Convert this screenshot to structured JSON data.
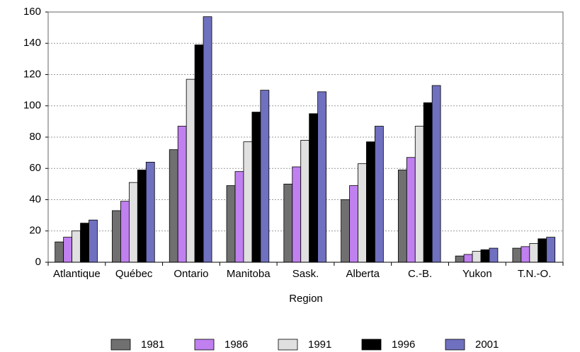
{
  "chart_data": {
    "type": "bar",
    "x_label": "Region",
    "categories": [
      "Atlantique",
      "Québec",
      "Ontario",
      "Manitoba",
      "Sask.",
      "Alberta",
      "C.-B.",
      "Yukon",
      "T.N.-O."
    ],
    "series": [
      {
        "name": "1981",
        "color": "#707070",
        "values": [
          13,
          33,
          72,
          49,
          50,
          40,
          59,
          4,
          9
        ]
      },
      {
        "name": "1986",
        "color": "#c080f0",
        "values": [
          16,
          39,
          87,
          58,
          61,
          49,
          67,
          5,
          10
        ]
      },
      {
        "name": "1991",
        "color": "#e0e0e0",
        "values": [
          20,
          51,
          117,
          77,
          78,
          63,
          87,
          7,
          12
        ]
      },
      {
        "name": "1996",
        "color": "#000000",
        "values": [
          25,
          59,
          139,
          96,
          95,
          77,
          102,
          8,
          15
        ]
      },
      {
        "name": "2001",
        "color": "#7070c0",
        "values": [
          27,
          64,
          157,
          110,
          109,
          87,
          113,
          9,
          16
        ]
      }
    ],
    "ylim": [
      0,
      160
    ],
    "yticks": [
      0,
      20,
      40,
      60,
      80,
      100,
      120,
      140,
      160
    ],
    "grid": true,
    "legend": "bottom"
  }
}
